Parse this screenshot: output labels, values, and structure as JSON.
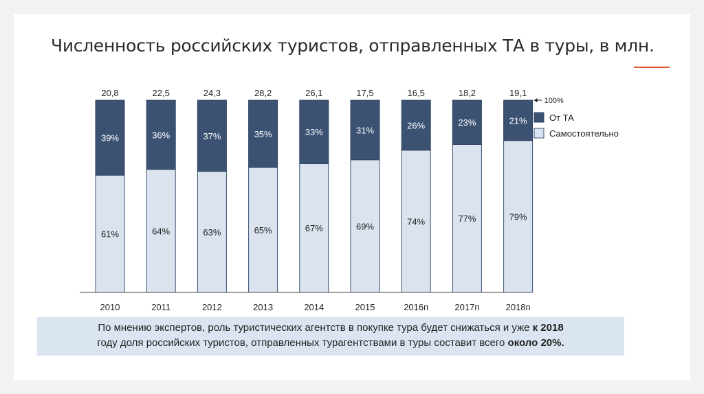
{
  "slide": {
    "title": "Численность российских туристов, отправленных ТА в туры, в млн."
  },
  "chart_data": {
    "type": "bar",
    "stacked": "100%",
    "categories": [
      "2010",
      "2011",
      "2012",
      "2013",
      "2014",
      "2015",
      "2016п",
      "2017п",
      "2018п"
    ],
    "totals": [
      "20,8",
      "22,5",
      "24,3",
      "28,2",
      "26,1",
      "17,5",
      "16,5",
      "18,2",
      "19,1"
    ],
    "series": [
      {
        "name": "Самостоятельно",
        "values": [
          61,
          64,
          63,
          65,
          67,
          69,
          74,
          77,
          79
        ],
        "labels": [
          "61%",
          "64%",
          "63%",
          "65%",
          "67%",
          "69%",
          "74%",
          "77%",
          "79%"
        ],
        "color": "#dbe3ef"
      },
      {
        "name": "От ТА",
        "values": [
          39,
          36,
          37,
          35,
          33,
          31,
          26,
          23,
          21
        ],
        "labels": [
          "39%",
          "36%",
          "37%",
          "35%",
          "33%",
          "31%",
          "26%",
          "23%",
          "21%"
        ],
        "color": "#3b5273"
      }
    ],
    "ylim": [
      0,
      100
    ],
    "annotation": "100%",
    "legend_position": "right"
  },
  "note": {
    "part1": "По мнению экспертов, роль туристических агентств в покупке тура будет снижаться и уже ",
    "bold1": "к 2018",
    "part2": "году доля российских туристов, отправленных турагентствами в туры составит всего ",
    "bold2": "около 20%."
  }
}
